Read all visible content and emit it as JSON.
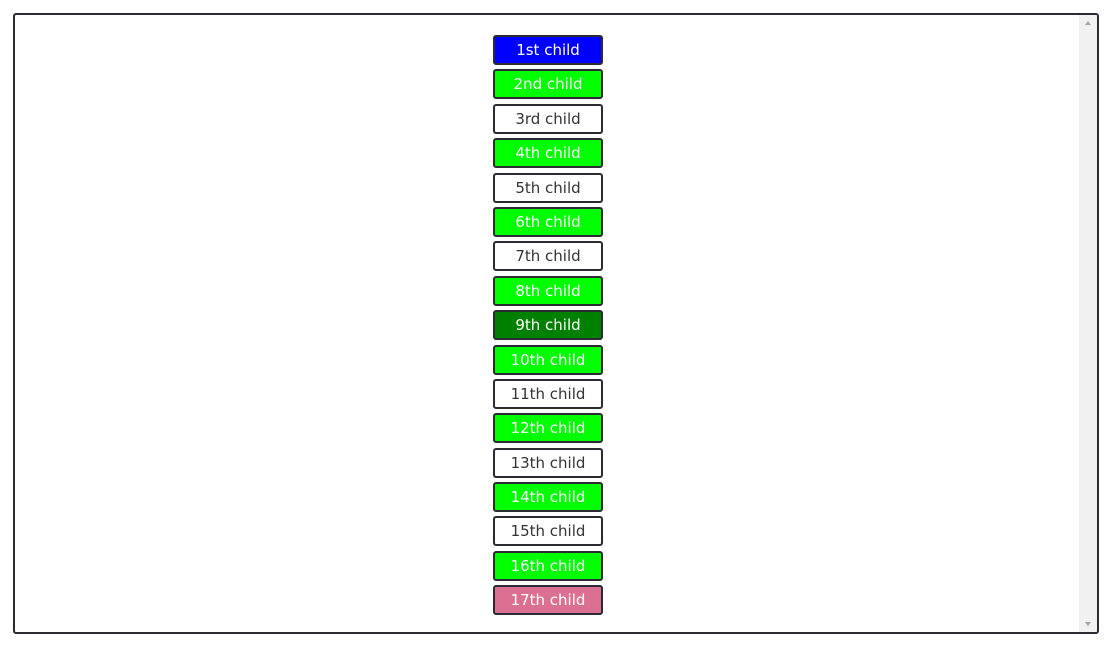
{
  "children": [
    {
      "label": "1st child",
      "color": "#0000ff",
      "text_color": "#ffffff"
    },
    {
      "label": "2nd child",
      "color": "#00ff00",
      "text_color": "#ffffff"
    },
    {
      "label": "3rd child",
      "color": "#ffffff",
      "text_color": "#333333"
    },
    {
      "label": "4th child",
      "color": "#00ff00",
      "text_color": "#ffffff"
    },
    {
      "label": "5th child",
      "color": "#ffffff",
      "text_color": "#333333"
    },
    {
      "label": "6th child",
      "color": "#00ff00",
      "text_color": "#ffffff"
    },
    {
      "label": "7th child",
      "color": "#ffffff",
      "text_color": "#333333"
    },
    {
      "label": "8th child",
      "color": "#00ff00",
      "text_color": "#ffffff"
    },
    {
      "label": "9th child",
      "color": "#008000",
      "text_color": "#ffffff"
    },
    {
      "label": "10th child",
      "color": "#00ff00",
      "text_color": "#ffffff"
    },
    {
      "label": "11th child",
      "color": "#ffffff",
      "text_color": "#333333"
    },
    {
      "label": "12th child",
      "color": "#00ff00",
      "text_color": "#ffffff"
    },
    {
      "label": "13th child",
      "color": "#ffffff",
      "text_color": "#333333"
    },
    {
      "label": "14th child",
      "color": "#00ff00",
      "text_color": "#ffffff"
    },
    {
      "label": "15th child",
      "color": "#ffffff",
      "text_color": "#333333"
    },
    {
      "label": "16th child",
      "color": "#00ff00",
      "text_color": "#ffffff"
    },
    {
      "label": "17th child",
      "color": "#db7093",
      "text_color": "#ffffff"
    }
  ],
  "icons": {
    "scroll_up": "arrow-up-icon",
    "scroll_down": "arrow-down-icon"
  }
}
